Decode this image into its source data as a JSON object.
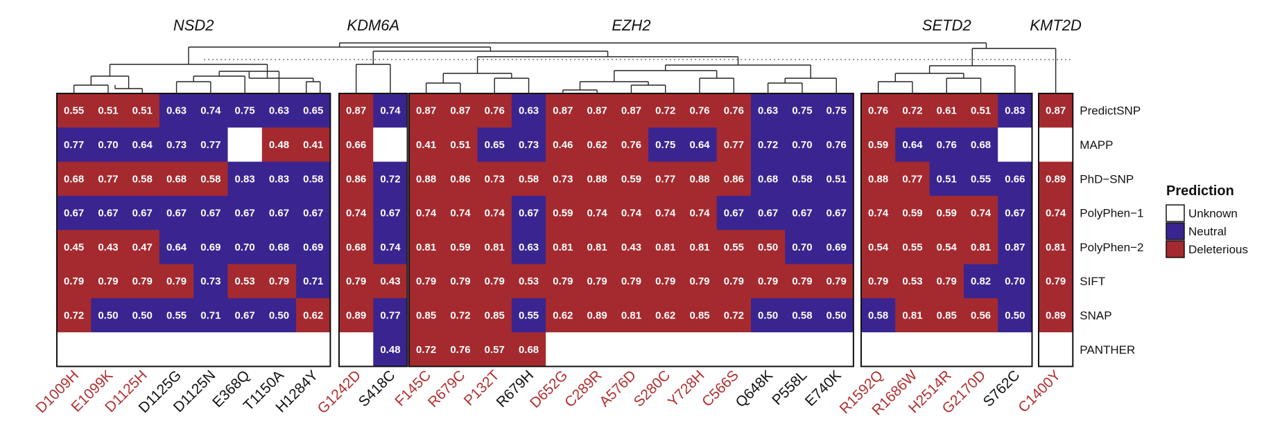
{
  "chart_data": {
    "type": "heatmap",
    "rows": [
      "PredictSNP",
      "MAPP",
      "PhD−SNP",
      "PolyPhen−1",
      "PolyPhen−2",
      "SIFT",
      "SNAP",
      "PANTHER"
    ],
    "columns": [
      "D1009H",
      "E1099K",
      "D1125H",
      "D1125G",
      "D1125N",
      "E368Q",
      "T1150A",
      "H1284Y",
      "G1242D",
      "S418C",
      "F145C",
      "R679C",
      "P132T",
      "R679H",
      "D652G",
      "C289R",
      "A576D",
      "S280C",
      "Y728H",
      "C566S",
      "Q648K",
      "P558L",
      "E740K",
      "R1592Q",
      "R1686W",
      "H2514R",
      "G2170D",
      "S762C",
      "C1400Y"
    ],
    "column_label_colors": {
      "deleterious": "#b03030",
      "neutral": "#111111"
    },
    "column_label_class": [
      "D",
      "D",
      "D",
      "N",
      "N",
      "N",
      "N",
      "N",
      "D",
      "N",
      "D",
      "D",
      "D",
      "N",
      "D",
      "D",
      "D",
      "D",
      "D",
      "D",
      "N",
      "N",
      "N",
      "D",
      "D",
      "D",
      "D",
      "N",
      "D"
    ],
    "groups": [
      {
        "gene": "NSD2",
        "count": 8
      },
      {
        "gene": "KDM6A",
        "count": 2
      },
      {
        "gene": "EZH2",
        "count": 13
      },
      {
        "gene": "SETD2",
        "count": 5
      },
      {
        "gene": "KMT2D",
        "count": 1
      }
    ],
    "values": [
      [
        0.55,
        0.51,
        0.51,
        0.63,
        0.74,
        0.75,
        0.63,
        0.65,
        0.87,
        0.74,
        0.87,
        0.87,
        0.76,
        0.63,
        0.87,
        0.87,
        0.87,
        0.72,
        0.76,
        0.76,
        0.63,
        0.75,
        0.75,
        0.76,
        0.72,
        0.61,
        0.51,
        0.83,
        0.87
      ],
      [
        0.77,
        0.7,
        0.64,
        0.73,
        0.77,
        null,
        0.48,
        0.41,
        0.66,
        null,
        0.41,
        0.51,
        0.65,
        0.73,
        0.46,
        0.62,
        0.76,
        0.75,
        0.64,
        0.77,
        0.72,
        0.7,
        0.76,
        0.59,
        0.64,
        0.76,
        0.68,
        null,
        null
      ],
      [
        0.68,
        0.77,
        0.58,
        0.68,
        0.58,
        0.83,
        0.83,
        0.58,
        0.86,
        0.72,
        0.88,
        0.86,
        0.73,
        0.58,
        0.73,
        0.88,
        0.59,
        0.77,
        0.88,
        0.86,
        0.68,
        0.58,
        0.51,
        0.88,
        0.77,
        0.51,
        0.55,
        0.66,
        0.89
      ],
      [
        0.67,
        0.67,
        0.67,
        0.67,
        0.67,
        0.67,
        0.67,
        0.67,
        0.74,
        0.67,
        0.74,
        0.74,
        0.74,
        0.67,
        0.59,
        0.74,
        0.74,
        0.74,
        0.74,
        0.67,
        0.67,
        0.67,
        0.67,
        0.74,
        0.59,
        0.59,
        0.74,
        0.67,
        0.74
      ],
      [
        0.45,
        0.43,
        0.47,
        0.64,
        0.69,
        0.7,
        0.68,
        0.69,
        0.68,
        0.74,
        0.81,
        0.59,
        0.81,
        0.63,
        0.81,
        0.81,
        0.43,
        0.81,
        0.81,
        0.55,
        0.5,
        0.7,
        0.69,
        0.54,
        0.55,
        0.54,
        0.81,
        0.87,
        0.81
      ],
      [
        0.79,
        0.79,
        0.79,
        0.79,
        0.73,
        0.53,
        0.79,
        0.71,
        0.79,
        0.43,
        0.79,
        0.79,
        0.79,
        0.53,
        0.79,
        0.79,
        0.79,
        0.79,
        0.79,
        0.79,
        0.79,
        0.79,
        0.79,
        0.79,
        0.53,
        0.79,
        0.82,
        0.7,
        0.79
      ],
      [
        0.72,
        0.5,
        0.5,
        0.55,
        0.71,
        0.67,
        0.5,
        0.62,
        0.89,
        0.77,
        0.85,
        0.72,
        0.85,
        0.55,
        0.62,
        0.89,
        0.81,
        0.62,
        0.85,
        0.72,
        0.5,
        0.58,
        0.5,
        0.58,
        0.81,
        0.85,
        0.56,
        0.5,
        0.89
      ],
      [
        null,
        null,
        null,
        null,
        null,
        null,
        null,
        null,
        null,
        0.48,
        0.72,
        0.76,
        0.57,
        0.68,
        null,
        null,
        null,
        null,
        null,
        null,
        null,
        null,
        null,
        null,
        null,
        null,
        null,
        null,
        null
      ]
    ],
    "prediction": [
      [
        "D",
        "D",
        "D",
        "N",
        "N",
        "N",
        "N",
        "N",
        "D",
        "N",
        "D",
        "D",
        "D",
        "N",
        "D",
        "D",
        "D",
        "D",
        "D",
        "D",
        "N",
        "N",
        "N",
        "D",
        "D",
        "D",
        "D",
        "N",
        "D"
      ],
      [
        "N",
        "N",
        "N",
        "N",
        "N",
        "U",
        "D",
        "D",
        "D",
        "U",
        "D",
        "D",
        "N",
        "N",
        "D",
        "D",
        "D",
        "N",
        "N",
        "D",
        "N",
        "N",
        "N",
        "D",
        "N",
        "N",
        "N",
        "U",
        "U"
      ],
      [
        "D",
        "D",
        "D",
        "D",
        "D",
        "N",
        "N",
        "N",
        "D",
        "N",
        "D",
        "D",
        "D",
        "D",
        "D",
        "D",
        "D",
        "D",
        "D",
        "D",
        "N",
        "N",
        "N",
        "D",
        "D",
        "N",
        "N",
        "N",
        "D"
      ],
      [
        "N",
        "N",
        "N",
        "N",
        "N",
        "N",
        "N",
        "N",
        "D",
        "N",
        "D",
        "D",
        "D",
        "N",
        "D",
        "D",
        "D",
        "D",
        "D",
        "N",
        "N",
        "N",
        "N",
        "D",
        "D",
        "D",
        "D",
        "N",
        "D"
      ],
      [
        "D",
        "D",
        "D",
        "N",
        "N",
        "N",
        "N",
        "N",
        "D",
        "N",
        "D",
        "D",
        "D",
        "N",
        "D",
        "D",
        "D",
        "D",
        "D",
        "D",
        "D",
        "N",
        "N",
        "D",
        "D",
        "D",
        "D",
        "N",
        "D"
      ],
      [
        "D",
        "D",
        "D",
        "D",
        "N",
        "D",
        "D",
        "N",
        "D",
        "D",
        "D",
        "D",
        "D",
        "D",
        "D",
        "D",
        "D",
        "D",
        "D",
        "D",
        "D",
        "D",
        "D",
        "D",
        "D",
        "D",
        "N",
        "N",
        "D"
      ],
      [
        "D",
        "N",
        "N",
        "N",
        "N",
        "N",
        "N",
        "D",
        "D",
        "N",
        "D",
        "D",
        "D",
        "N",
        "D",
        "D",
        "D",
        "D",
        "D",
        "D",
        "N",
        "N",
        "N",
        "N",
        "D",
        "D",
        "D",
        "N",
        "D"
      ],
      [
        "U",
        "U",
        "U",
        "U",
        "U",
        "U",
        "U",
        "U",
        "U",
        "N",
        "D",
        "D",
        "D",
        "D",
        "U",
        "U",
        "U",
        "U",
        "U",
        "U",
        "U",
        "U",
        "U",
        "U",
        "U",
        "U",
        "U",
        "U",
        "U"
      ]
    ],
    "legend": {
      "title": "Prediction",
      "placement": "right",
      "entries": [
        {
          "key": "U",
          "label": "Unknown",
          "color": "#ffffff"
        },
        {
          "key": "N",
          "label": "Neutral",
          "color": "#3a2590"
        },
        {
          "key": "D",
          "label": "Deleterious",
          "color": "#a42a2f"
        }
      ]
    },
    "dendrogram": true
  }
}
